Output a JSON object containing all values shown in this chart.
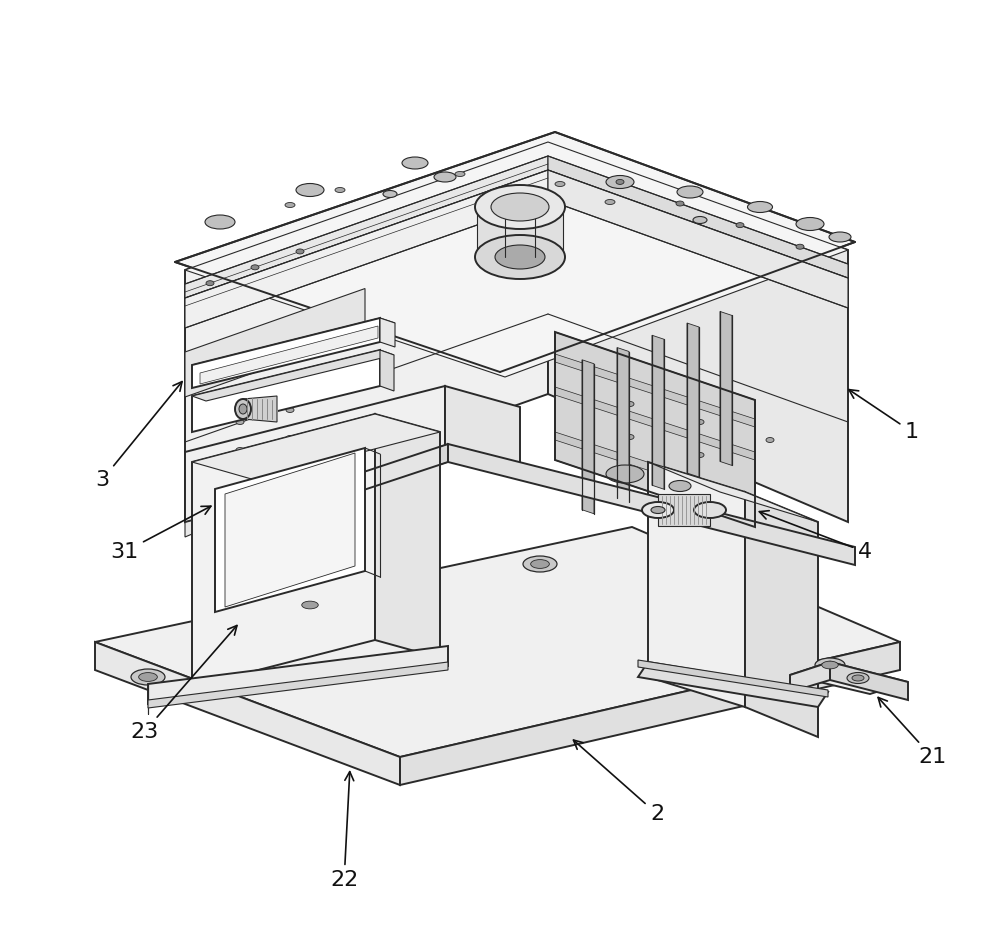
{
  "bg": "#ffffff",
  "lc": "#2a2a2a",
  "face_top": "#f5f5f5",
  "face_front": "#f0f0f0",
  "face_right": "#e8e8e8",
  "face_dark": "#d8d8d8",
  "white": "#ffffff",
  "lw_main": 1.4,
  "lw_thin": 0.8,
  "label_fs": 16,
  "fig_w": 10.0,
  "fig_h": 9.42
}
